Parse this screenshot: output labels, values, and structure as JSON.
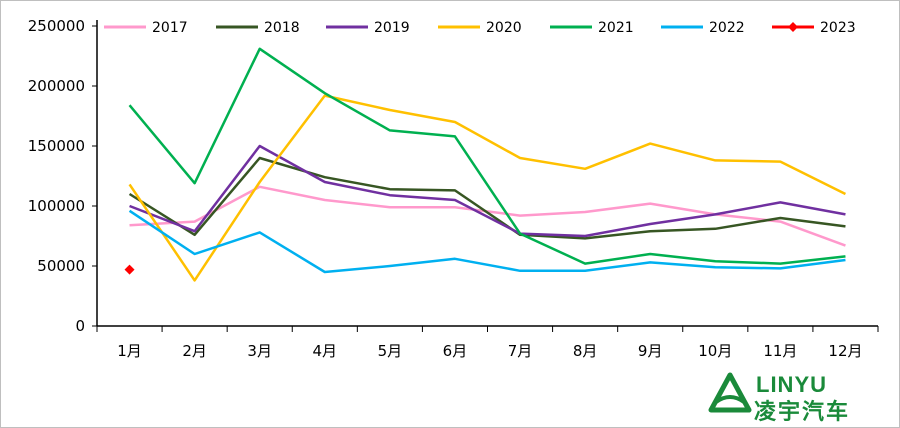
{
  "chart_data": {
    "type": "line",
    "title": "",
    "xlabel": "",
    "ylabel": "",
    "categories": [
      "1月",
      "2月",
      "3月",
      "4月",
      "5月",
      "6月",
      "7月",
      "8月",
      "9月",
      "10月",
      "11月",
      "12月"
    ],
    "ylim": [
      0,
      250000
    ],
    "yticks": [
      0,
      50000,
      100000,
      150000,
      200000,
      250000
    ],
    "grid": false,
    "legend": "top",
    "series": [
      {
        "name": "2017",
        "color": "#ff99cc",
        "values": [
          84000,
          87000,
          116000,
          105000,
          99000,
          99000,
          92000,
          95000,
          102000,
          93000,
          87000,
          67000
        ]
      },
      {
        "name": "2018",
        "color": "#375623",
        "values": [
          110000,
          76000,
          140000,
          124000,
          114000,
          113000,
          76000,
          73000,
          79000,
          81000,
          90000,
          83000
        ]
      },
      {
        "name": "2019",
        "color": "#7030a0",
        "values": [
          100000,
          79000,
          150000,
          120000,
          109000,
          105000,
          77000,
          75000,
          85000,
          93000,
          103000,
          93000
        ]
      },
      {
        "name": "2020",
        "color": "#ffc000",
        "values": [
          118000,
          38000,
          120000,
          192000,
          180000,
          170000,
          140000,
          131000,
          152000,
          138000,
          137000,
          110000
        ]
      },
      {
        "name": "2021",
        "color": "#00b050",
        "values": [
          184000,
          119000,
          231000,
          194000,
          163000,
          158000,
          77000,
          52000,
          60000,
          54000,
          52000,
          58000
        ]
      },
      {
        "name": "2022",
        "color": "#00b0f0",
        "values": [
          96000,
          60000,
          78000,
          45000,
          50000,
          56000,
          46000,
          46000,
          53000,
          49000,
          48000,
          55000
        ]
      },
      {
        "name": "2023",
        "color": "#ff0000",
        "marker": "diamond",
        "values": [
          47000,
          null,
          null,
          null,
          null,
          null,
          null,
          null,
          null,
          null,
          null,
          null
        ]
      }
    ]
  },
  "logo": {
    "en": "LINYU",
    "cn": "凌宇汽车"
  }
}
